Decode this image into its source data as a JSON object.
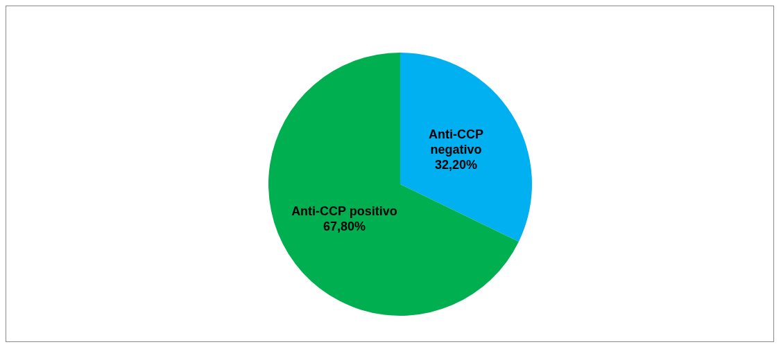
{
  "chart_data": {
    "type": "pie",
    "categories": [
      "Anti-CCP negativo",
      "Anti-CCP positivo"
    ],
    "values": [
      32.2,
      67.8
    ],
    "colors": [
      "#00b0f0",
      "#00b050"
    ],
    "value_labels": [
      "32,20%",
      "67,80%"
    ],
    "legend": false
  }
}
